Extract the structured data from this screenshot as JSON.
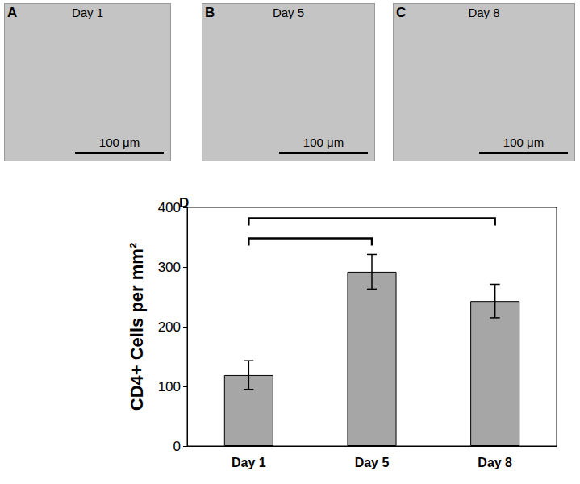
{
  "panels": [
    {
      "letter": "A",
      "label": "Day 1",
      "scale_bar": "100 μm"
    },
    {
      "letter": "B",
      "label": "Day 5",
      "scale_bar": "100 μm"
    },
    {
      "letter": "C",
      "label": "Day 8",
      "scale_bar": "100 μm"
    }
  ],
  "chart_panel": "D",
  "chart_data": {
    "type": "bar",
    "y_label": "CD4+ Cells per mm²",
    "categories": [
      "Day 1",
      "Day 5",
      "Day 8"
    ],
    "values": [
      119,
      292,
      243
    ],
    "errors": [
      24,
      29,
      28
    ],
    "color": "#a6a6a6",
    "ylim": [
      0,
      400
    ],
    "yticks": [
      0,
      100,
      200,
      300,
      400
    ],
    "grid": false,
    "brackets": [
      [
        "Day 1",
        "Day 5"
      ],
      [
        "Day 1",
        "Day 8"
      ]
    ]
  }
}
